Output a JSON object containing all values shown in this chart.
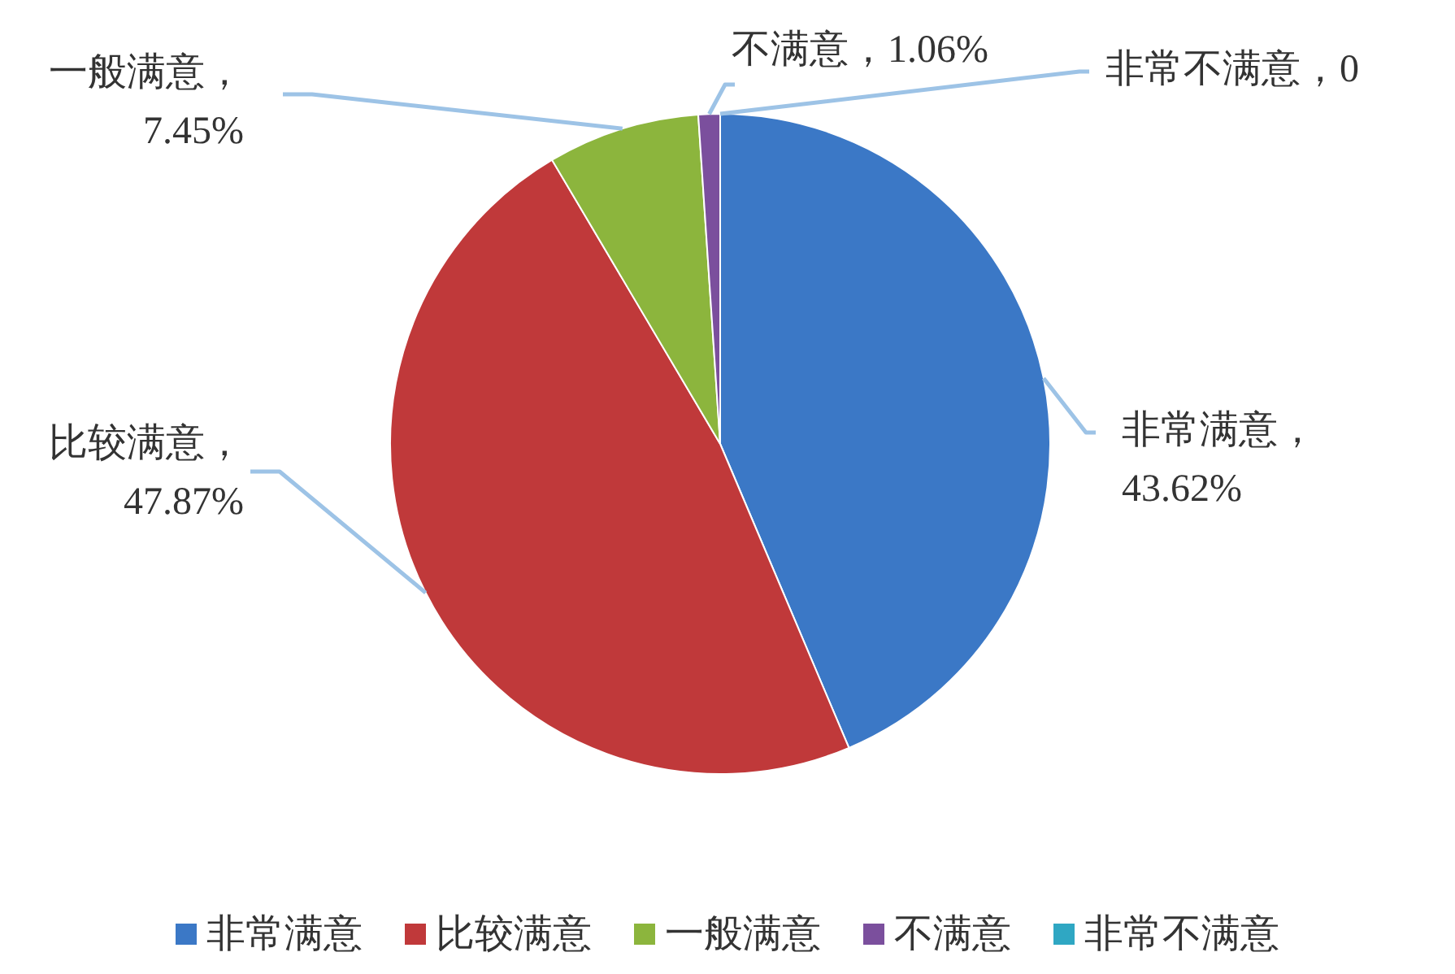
{
  "chart_data": {
    "type": "pie",
    "categories": [
      "非常满意",
      "比较满意",
      "一般满意",
      "不满意",
      "非常不满意"
    ],
    "values": [
      43.62,
      47.87,
      7.45,
      1.06,
      0
    ],
    "value_labels": [
      "，43.62%",
      "，47.87%",
      "，7.45%",
      "，1.06%",
      "，0"
    ],
    "colors": [
      "#3b78c6",
      "#c0393a",
      "#8cb53d",
      "#7b4f9d",
      "#2fa7c3"
    ],
    "legend": "bottom"
  }
}
